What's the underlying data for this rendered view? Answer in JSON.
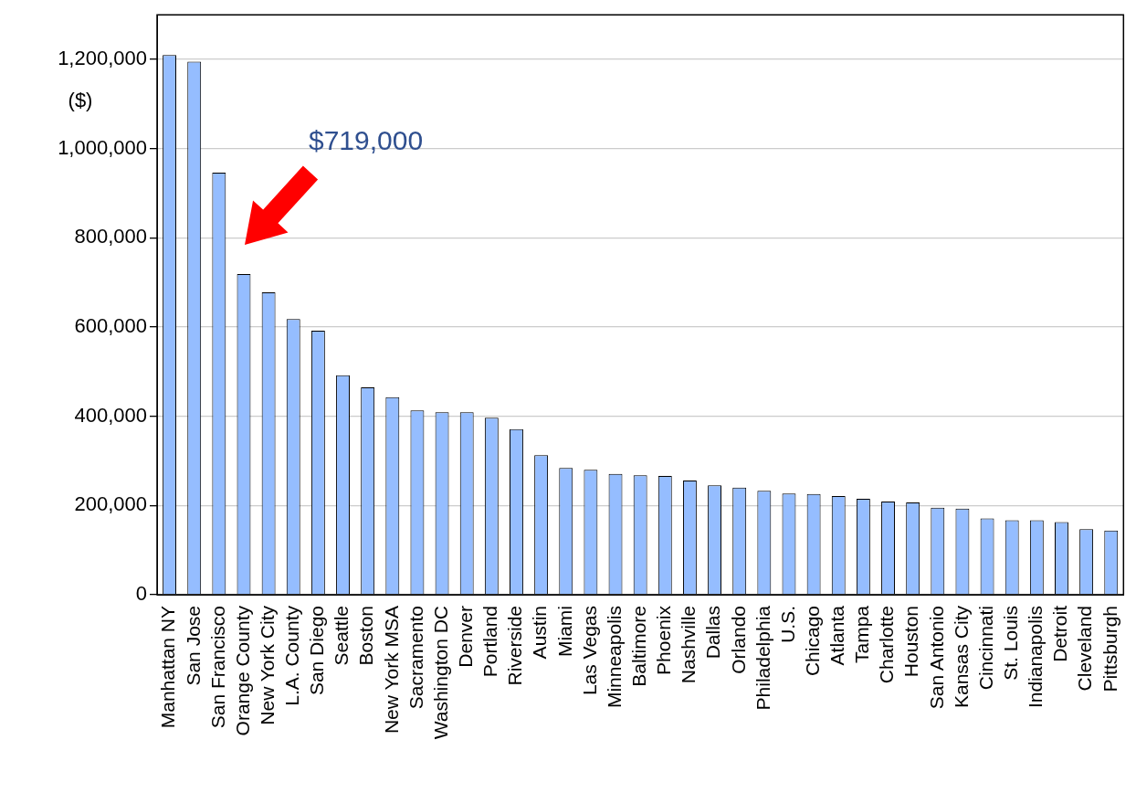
{
  "chart_data": {
    "type": "bar",
    "ylabel": "($)",
    "categories": [
      "Manhattan NY",
      "San Jose",
      "San Francisco",
      "Orange County",
      "New York City",
      "L.A. County",
      "San Diego",
      "Seattle",
      "Boston",
      "New York MSA",
      "Sacramento",
      "Washington DC",
      "Denver",
      "Portland",
      "Riverside",
      "Austin",
      "Miami",
      "Las Vegas",
      "Minneapolis",
      "Baltimore",
      "Phoenix",
      "Nashville",
      "Dallas",
      "Orlando",
      "Philadelphia",
      "U.S.",
      "Chicago",
      "Atlanta",
      "Tampa",
      "Charlotte",
      "Houston",
      "San Antonio",
      "Kansas City",
      "Cincinnati",
      "St. Louis",
      "Indianapolis",
      "Detroit",
      "Cleveland",
      "Pittsburgh"
    ],
    "values": [
      1210000,
      1195000,
      946000,
      719000,
      678000,
      618000,
      592000,
      492000,
      465000,
      443000,
      413000,
      409000,
      409000,
      397000,
      371000,
      313000,
      284000,
      280000,
      271000,
      268000,
      266000,
      256000,
      245000,
      240000,
      233000,
      227000,
      226000,
      221000,
      215000,
      209000,
      207000,
      195000,
      193000,
      171000,
      167000,
      167000,
      163000,
      147000,
      144000
    ],
    "color": "#95bdff",
    "ylim": [
      0,
      1300000
    ],
    "yticks": [
      0,
      {
        "value": 200000,
        "label": "200,000"
      },
      {
        "value": 400000,
        "label": "400,000"
      },
      {
        "value": 600000,
        "label": "600,000"
      },
      {
        "value": 800000,
        "label": "800,000"
      },
      {
        "value": 1000000,
        "label": "1,000,000"
      },
      {
        "value": 1200000,
        "label": "1,200,000"
      }
    ],
    "grid": "y",
    "annotations": [
      "$719,000"
    ]
  }
}
